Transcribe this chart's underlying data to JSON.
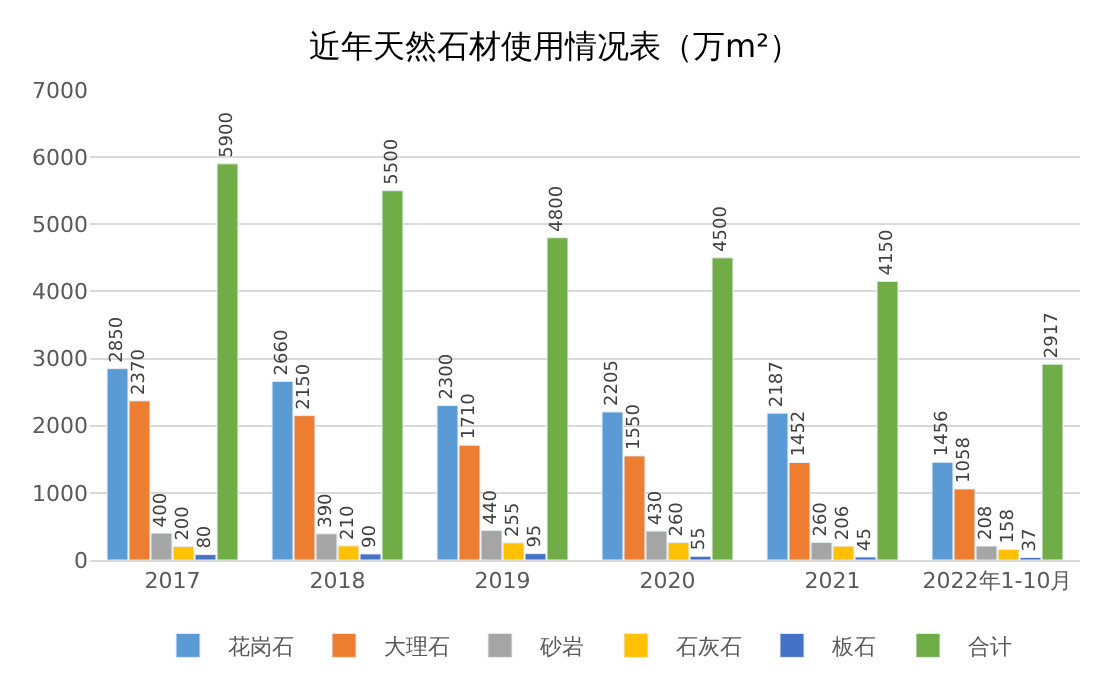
{
  "chart_data": {
    "type": "bar",
    "title": "近年天然石材使用情况表（万m²）",
    "categories": [
      "2017",
      "2018",
      "2019",
      "2020",
      "2021",
      "2022年1-10月"
    ],
    "series": [
      {
        "name": "花岗石",
        "color": "#5b9bd5",
        "values": [
          2850,
          2660,
          2300,
          2205,
          2187,
          1456
        ]
      },
      {
        "name": "大理石",
        "color": "#ed7d31",
        "values": [
          2370,
          2150,
          1710,
          1550,
          1452,
          1058
        ]
      },
      {
        "name": "砂岩",
        "color": "#a5a5a5",
        "values": [
          400,
          390,
          440,
          430,
          260,
          208
        ]
      },
      {
        "name": "石灰石",
        "color": "#ffc000",
        "values": [
          200,
          210,
          255,
          260,
          206,
          158
        ]
      },
      {
        "name": "板石",
        "color": "#4472c4",
        "values": [
          80,
          90,
          95,
          55,
          45,
          37
        ]
      },
      {
        "name": "合计",
        "color": "#70ad47",
        "values": [
          5900,
          5500,
          4800,
          4500,
          4150,
          2917
        ]
      }
    ],
    "ylim": [
      0,
      7000
    ],
    "yticks": [
      0,
      1000,
      2000,
      3000,
      4000,
      5000,
      6000,
      7000
    ],
    "grid": "y",
    "legend": "bottom",
    "data_labels": true
  }
}
